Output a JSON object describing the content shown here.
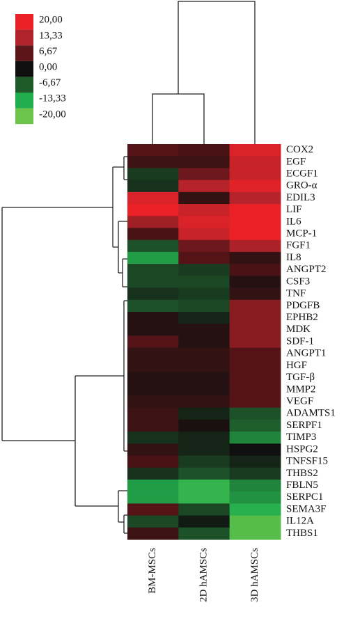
{
  "chart_data": {
    "type": "heatmap",
    "columns": [
      "BM-MSCs",
      "2D hAMSCs",
      "3D hAMSCs"
    ],
    "rows": [
      "COX2",
      "EGF",
      "ECGF1",
      "GRO-α",
      "EDIL3",
      "LIF",
      "IL6",
      "MCP-1",
      "FGF1",
      "IL8",
      "ANGPT2",
      "CSF3",
      "TNF",
      "PDGFB",
      "EPHB2",
      "MDK",
      "SDF-1",
      "ANGPT1",
      "HGF",
      "TGF-β",
      "MMP2",
      "VEGF",
      "ADAMTS1",
      "SERPF1",
      "TIMP3",
      "HSPG2",
      "TNFSF15",
      "THBS2",
      "FBLN5",
      "SERPC1",
      "SEMA3F",
      "IL12A",
      "THBS1"
    ],
    "values": [
      [
        6,
        5,
        18
      ],
      [
        4,
        4,
        16
      ],
      [
        -4,
        8,
        16
      ],
      [
        -3,
        14,
        19
      ],
      [
        18,
        3,
        14
      ],
      [
        20,
        16,
        20
      ],
      [
        12,
        18,
        20
      ],
      [
        5,
        16,
        20
      ],
      [
        -6,
        8,
        13
      ],
      [
        -12,
        6,
        3
      ],
      [
        -5,
        -4,
        5
      ],
      [
        -5,
        -5,
        2
      ],
      [
        -3,
        -4,
        3
      ],
      [
        -6,
        -5,
        10
      ],
      [
        2,
        -2,
        10
      ],
      [
        2,
        2,
        10
      ],
      [
        6,
        2,
        10
      ],
      [
        3,
        3,
        6
      ],
      [
        3,
        3,
        6
      ],
      [
        2,
        2,
        6
      ],
      [
        2,
        2,
        6
      ],
      [
        3,
        3,
        6
      ],
      [
        4,
        -2,
        -6
      ],
      [
        4,
        1,
        -7
      ],
      [
        -3,
        -2,
        -10
      ],
      [
        3,
        -2,
        0
      ],
      [
        5,
        -4,
        -2
      ],
      [
        -3,
        -6,
        -4
      ],
      [
        -12,
        -15,
        -10
      ],
      [
        -12,
        -15,
        -11
      ],
      [
        6,
        -5,
        -14
      ],
      [
        -5,
        -1,
        -18
      ],
      [
        4,
        -6,
        -18
      ]
    ],
    "colorbar": {
      "ticks": [
        {
          "value": 20,
          "label": "20,00"
        },
        {
          "value": 13.33,
          "label": "13,33"
        },
        {
          "value": 6.67,
          "label": "6,67"
        },
        {
          "value": 0,
          "label": "0,00"
        },
        {
          "value": -6.67,
          "label": "-6,67"
        },
        {
          "value": -13.33,
          "label": "-13,33"
        },
        {
          "value": -20,
          "label": "-20,00"
        }
      ],
      "colors": [
        "#ea2228",
        "#b1232a",
        "#5c1518",
        "#0f0f0f",
        "#1f5a2b",
        "#22ae4f",
        "#6cc44a"
      ]
    }
  }
}
